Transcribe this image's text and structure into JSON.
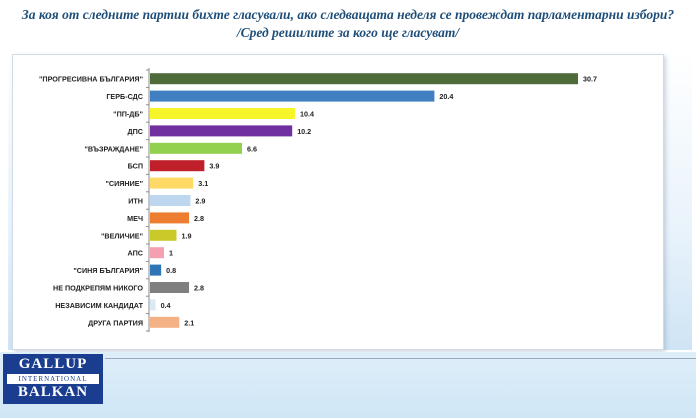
{
  "header": {
    "title_line1": "За коя от следните партии бихте  гласували,  ако следващата неделя се провеждат парламентарни избори?",
    "title_line2": "/Сред решилите за кого ще гласуват/"
  },
  "logo": {
    "line1": "GALLUP",
    "line2": "INTERNATIONAL",
    "line3": "BALKAN"
  },
  "chart_data": {
    "type": "bar",
    "orientation": "horizontal",
    "categories": [
      "\"ПРОГРЕСИВНА БЪЛГАРИЯ\"",
      "ГЕРБ-СДС",
      "\"ПП-ДБ\"",
      "ДПС",
      "\"ВЪЗРАЖДАНЕ\"",
      "БСП",
      "\"СИЯНИЕ\"",
      "ИТН",
      "МЕЧ",
      "\"ВЕЛИЧИЕ\"",
      "АПС",
      "\"СИНЯ БЪЛГАРИЯ\"",
      "НЕ ПОДКРЕПЯМ НИКОГО",
      "НЕЗАВИСИМ КАНДИДАТ",
      "ДРУГА ПАРТИЯ"
    ],
    "values": [
      30.7,
      20.4,
      10.4,
      10.2,
      6.6,
      3.9,
      3.1,
      2.9,
      2.8,
      1.9,
      1,
      0.8,
      2.8,
      0.4,
      2.1
    ],
    "value_labels": [
      "30.7",
      "20.4",
      "10.4",
      "10.2",
      "6.6",
      "3.9",
      "3.1",
      "2.9",
      "2.8",
      "1.9",
      "1",
      "0.8",
      "2.8",
      "0.4",
      "2.1"
    ],
    "colors": [
      "#4f6b3a",
      "#3f7fc2",
      "#f5f52a",
      "#7030a0",
      "#92d050",
      "#c0202a",
      "#ffd966",
      "#bdd7ee",
      "#ed7d31",
      "#c9c92a",
      "#f4a0b0",
      "#2e75b6",
      "#7f7f7f",
      "#dbe9f5",
      "#f4b183"
    ],
    "xlim": [
      0,
      32
    ],
    "grid": false
  }
}
